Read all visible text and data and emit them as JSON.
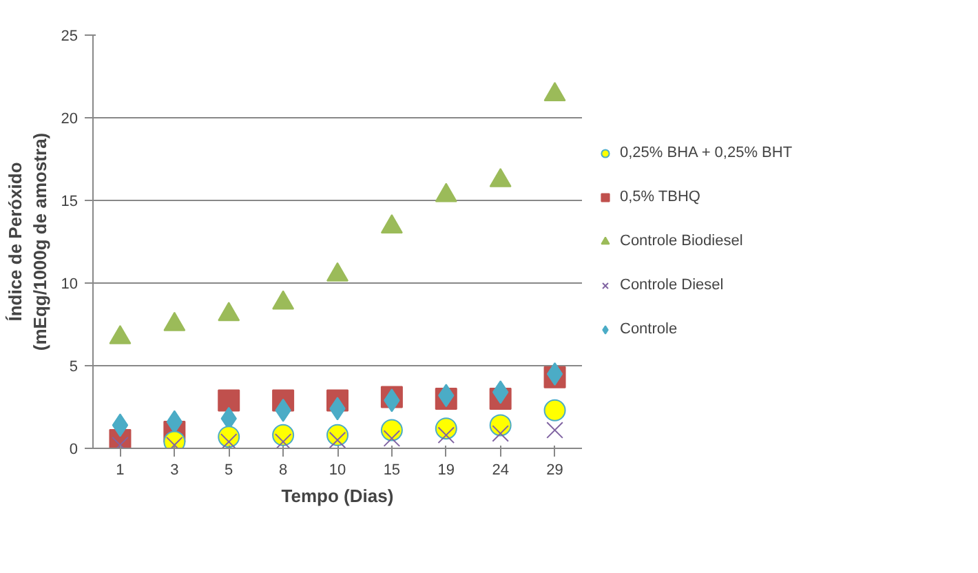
{
  "chart_data": {
    "type": "scatter",
    "xlabel": "Tempo (Dias)",
    "ylabel": "Índice de Peróxido\n(mEqg/1000g de amostra)",
    "categories": [
      "1",
      "3",
      "5",
      "8",
      "10",
      "15",
      "19",
      "24",
      "29"
    ],
    "ylim": [
      0,
      25
    ],
    "yticks": [
      0,
      5,
      10,
      15,
      20,
      25
    ],
    "grid": "y",
    "legend": "right",
    "series": [
      {
        "name": "0,25% BHA + 0,25% BHT",
        "color": "#ffff00",
        "marker": "circle",
        "values": [
          null,
          0.4,
          0.7,
          0.8,
          0.8,
          1.1,
          1.2,
          1.4,
          2.3
        ]
      },
      {
        "name": "0,5% TBHQ",
        "color": "#c0504d",
        "marker": "square",
        "values": [
          0.5,
          1.0,
          2.9,
          2.9,
          2.9,
          3.1,
          3.0,
          3.0,
          4.3
        ]
      },
      {
        "name": "Controle Biodiesel",
        "color": "#9bbb59",
        "marker": "triangle",
        "values": [
          6.7,
          7.5,
          8.1,
          8.8,
          10.5,
          13.4,
          15.3,
          16.2,
          21.4
        ]
      },
      {
        "name": "Controle Diesel",
        "color": "#8064a2",
        "marker": "cross",
        "values": [
          0.2,
          0.2,
          0.4,
          0.4,
          0.5,
          0.6,
          0.8,
          0.9,
          1.1
        ]
      },
      {
        "name": "Controle",
        "color": "#4bacc6",
        "marker": "diamond",
        "values": [
          1.4,
          1.6,
          1.8,
          2.3,
          2.4,
          2.9,
          3.2,
          3.4,
          4.5
        ]
      }
    ]
  }
}
